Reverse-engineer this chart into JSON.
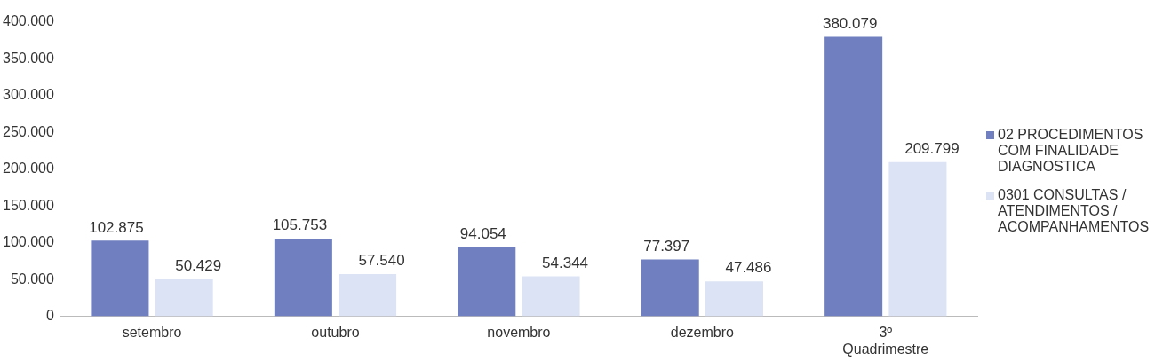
{
  "chart_data": {
    "type": "bar",
    "categories": [
      "setembro",
      "outubro",
      "novembro",
      "dezembro",
      "3º Quadrimestre"
    ],
    "series": [
      {
        "name": "02 PROCEDIMENTOS COM FINALIDADE DIAGNOSTICA",
        "color": "#6f7fbf",
        "values": [
          102875,
          105753,
          94054,
          77397,
          380079
        ],
        "value_labels": [
          "102.875",
          "105.753",
          "94.054",
          "77.397",
          "380.079"
        ]
      },
      {
        "name": "0301 CONSULTAS / ATENDIMENTOS / ACOMPANHAMENTOS",
        "color": "#dce3f5",
        "values": [
          50429,
          57540,
          54344,
          47486,
          209799
        ],
        "value_labels": [
          "50.429",
          "57.540",
          "54.344",
          "47.486",
          "209.799"
        ]
      }
    ],
    "ylim": [
      0,
      400000
    ],
    "yticks": [
      {
        "value": 0,
        "label": "0"
      },
      {
        "value": 50000,
        "label": "50.000"
      },
      {
        "value": 100000,
        "label": "100.000"
      },
      {
        "value": 150000,
        "label": "150.000"
      },
      {
        "value": 200000,
        "label": "200.000"
      },
      {
        "value": 250000,
        "label": "250.000"
      },
      {
        "value": 300000,
        "label": "300.000"
      },
      {
        "value": 350000,
        "label": "350.000"
      },
      {
        "value": 400000,
        "label": "400.000"
      }
    ],
    "grid": false,
    "legend": "right"
  }
}
